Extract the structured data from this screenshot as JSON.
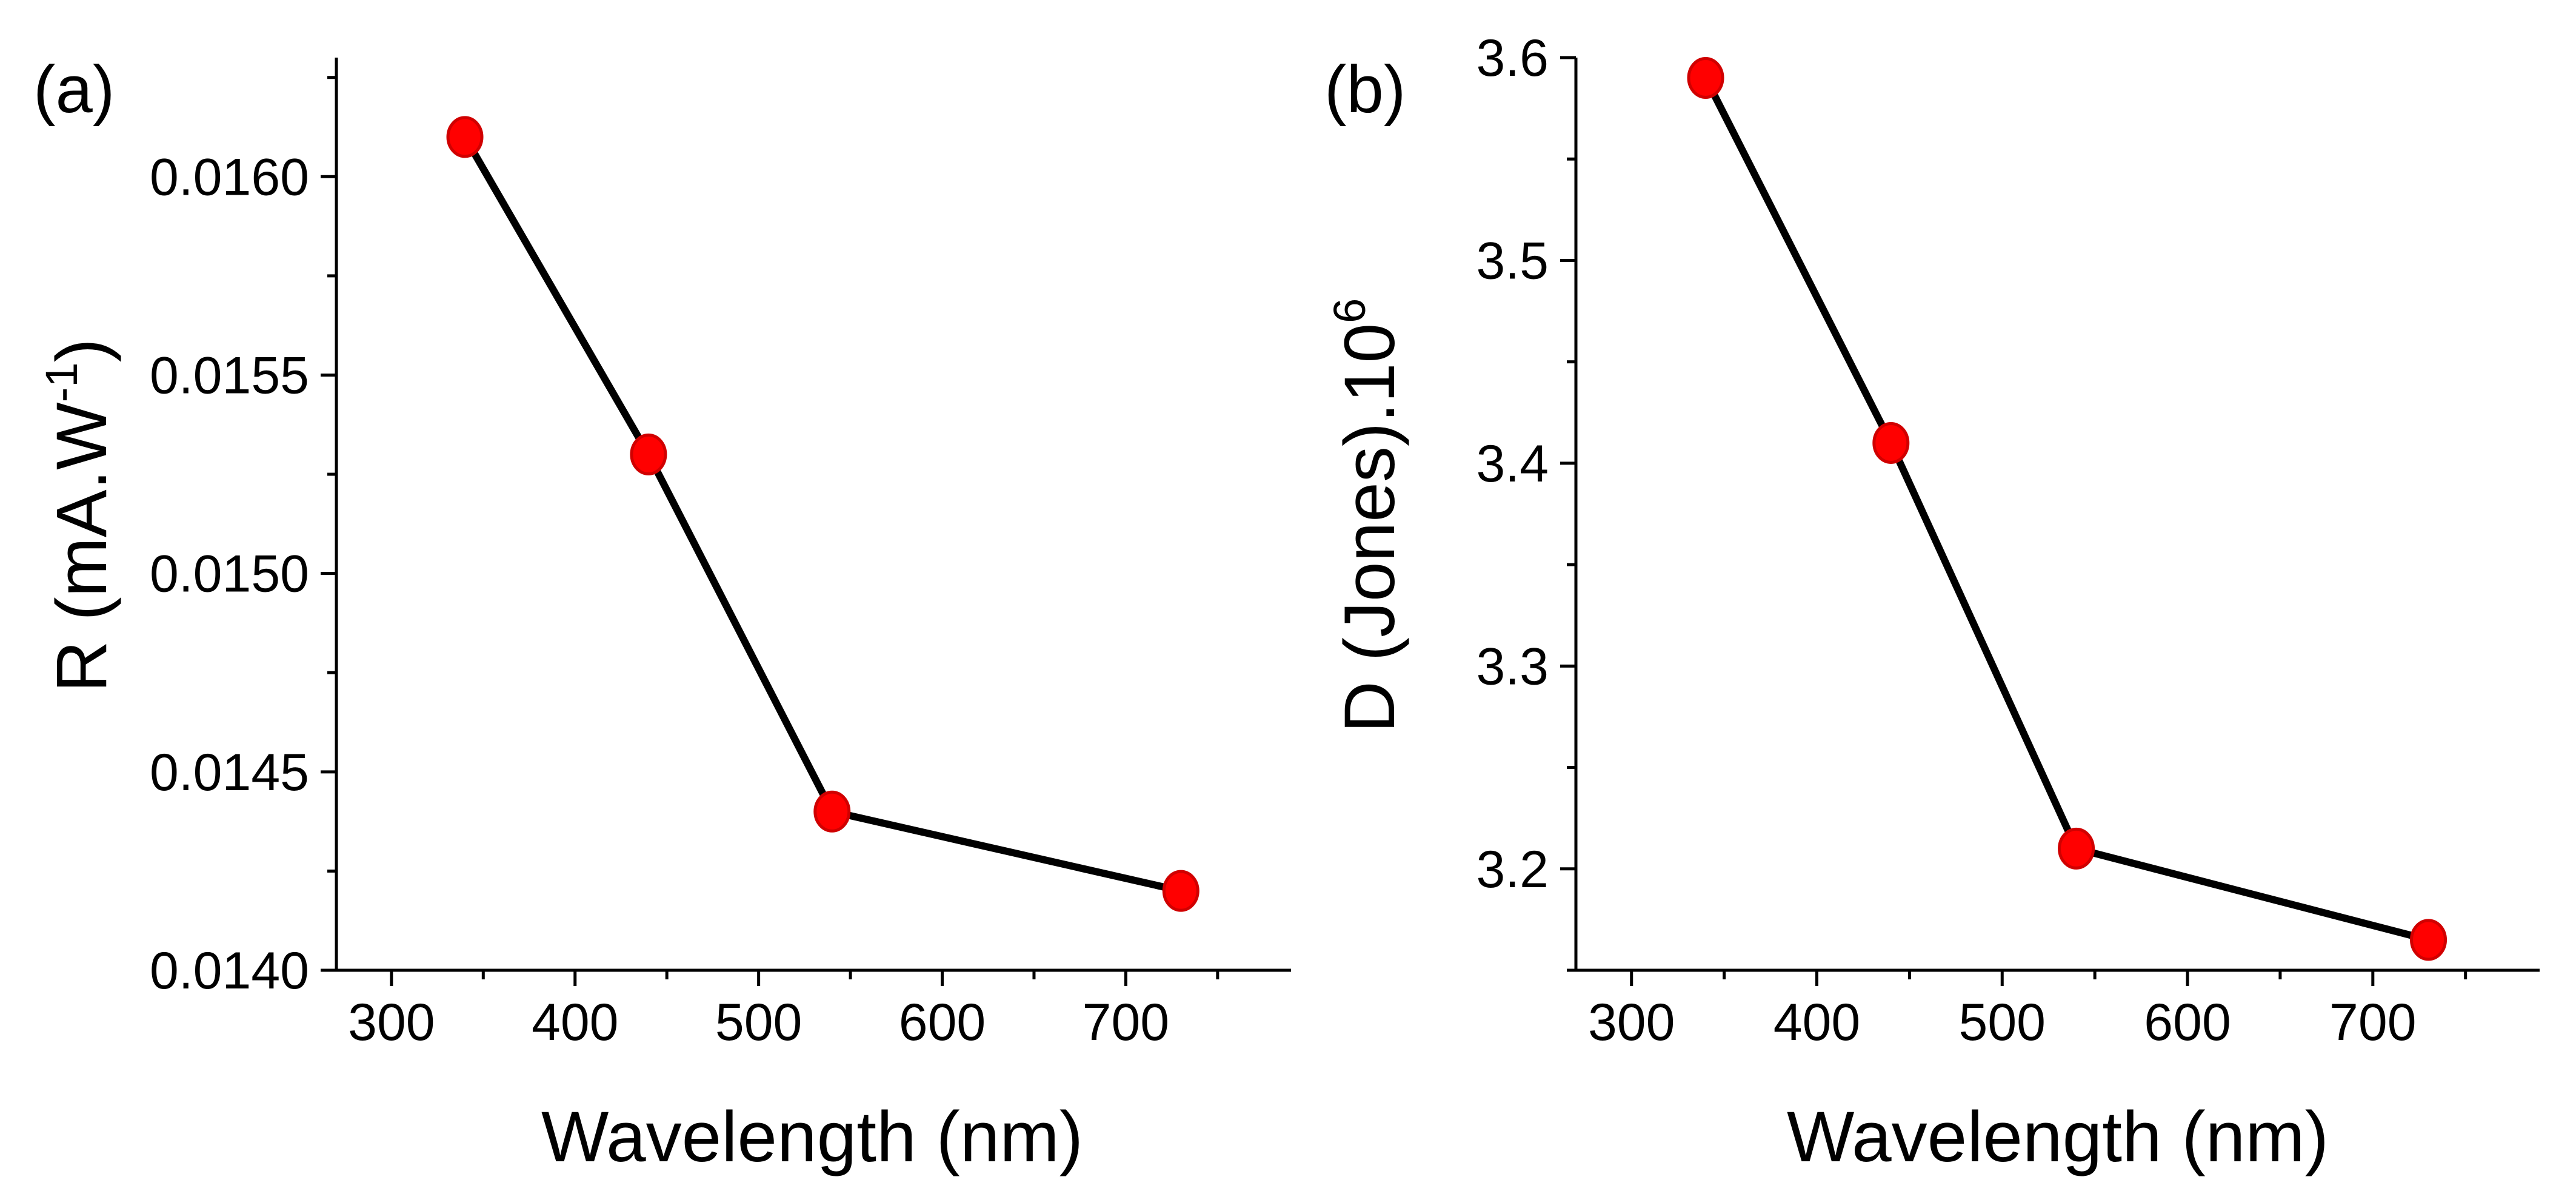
{
  "chart_data": [
    {
      "type": "line",
      "panel_label": "(a)",
      "xlabel": "Wavelength (nm)",
      "ylabel": {
        "main": "R (mA.W",
        "sup": "-1",
        "close": ")"
      },
      "xlim": [
        270,
        790
      ],
      "ylim": [
        0.014,
        0.0163
      ],
      "x_ticks": [
        "300",
        "400",
        "500",
        "600",
        "700"
      ],
      "y_ticks": [
        "0.0140",
        "0.0145",
        "0.0150",
        "0.0155",
        "0.0160"
      ],
      "x_tick_values": [
        300,
        400,
        500,
        600,
        700
      ],
      "y_tick_values": [
        0.014,
        0.0145,
        0.015,
        0.0155,
        0.016
      ],
      "x": [
        340,
        440,
        540,
        730
      ],
      "y": [
        0.0161,
        0.0153,
        0.0144,
        0.0142
      ],
      "line_color": "#000000",
      "marker_color": "#ff0000"
    },
    {
      "type": "line",
      "panel_label": "(b)",
      "xlabel": "Wavelength (nm)",
      "ylabel": {
        "main": "D (Jones).10",
        "sup": "6",
        "close": ""
      },
      "xlim": [
        270,
        790
      ],
      "ylim": [
        3.15,
        3.6
      ],
      "x_ticks": [
        "300",
        "400",
        "500",
        "600",
        "700"
      ],
      "y_ticks": [
        "3.2",
        "3.3",
        "3.4",
        "3.5",
        "3.6"
      ],
      "x_tick_values": [
        300,
        400,
        500,
        600,
        700
      ],
      "y_tick_values": [
        3.2,
        3.3,
        3.4,
        3.5,
        3.6
      ],
      "x": [
        340,
        440,
        540,
        730
      ],
      "y": [
        3.59,
        3.41,
        3.21,
        3.165
      ],
      "line_color": "#000000",
      "marker_color": "#ff0000"
    }
  ]
}
